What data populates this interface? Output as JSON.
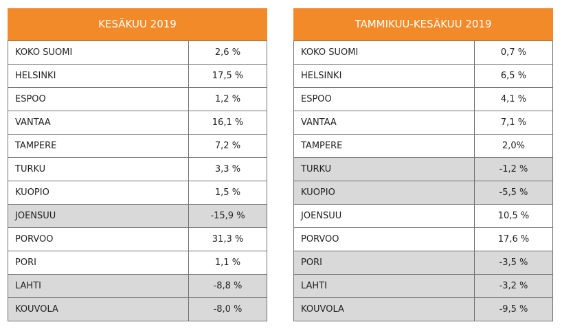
{
  "left": {
    "title": "KESÄKUU 2019",
    "rows": [
      {
        "city": "KOKO SUOMI",
        "value": "2,6 %",
        "shaded": false
      },
      {
        "city": "HELSINKI",
        "value": "17,5 %",
        "shaded": false
      },
      {
        "city": "ESPOO",
        "value": "1,2 %",
        "shaded": false
      },
      {
        "city": "VANTAA",
        "value": "16,1 %",
        "shaded": false
      },
      {
        "city": "TAMPERE",
        "value": "7,2 %",
        "shaded": false
      },
      {
        "city": "TURKU",
        "value": "3,3 %",
        "shaded": false
      },
      {
        "city": "KUOPIO",
        "value": "1,5 %",
        "shaded": false
      },
      {
        "city": "JOENSUU",
        "value": "-15,9 %",
        "shaded": true
      },
      {
        "city": "PORVOO",
        "value": "31,3 %",
        "shaded": false
      },
      {
        "city": "PORI",
        "value": "1,1 %",
        "shaded": false
      },
      {
        "city": "LAHTI",
        "value": "-8,8 %",
        "shaded": true
      },
      {
        "city": "KOUVOLA",
        "value": "-8,0 %",
        "shaded": true
      }
    ]
  },
  "right": {
    "title": "TAMMIKUU-KESÄKUU 2019",
    "rows": [
      {
        "city": "KOKO SUOMI",
        "value": "0,7 %",
        "shaded": false
      },
      {
        "city": "HELSINKI",
        "value": "6,5 %",
        "shaded": false
      },
      {
        "city": "ESPOO",
        "value": "4,1 %",
        "shaded": false
      },
      {
        "city": "VANTAA",
        "value": "7,1 %",
        "shaded": false
      },
      {
        "city": "TAMPERE",
        "value": "2,0%",
        "shaded": false
      },
      {
        "city": "TURKU",
        "value": "-1,2 %",
        "shaded": true
      },
      {
        "city": "KUOPIO",
        "value": "-5,5 %",
        "shaded": true
      },
      {
        "city": "JOENSUU",
        "value": "10,5 %",
        "shaded": false
      },
      {
        "city": "PORVOO",
        "value": "17,6 %",
        "shaded": false
      },
      {
        "city": "PORI",
        "value": "-3,5 %",
        "shaded": true
      },
      {
        "city": "LAHTI",
        "value": "-3,2 %",
        "shaded": true
      },
      {
        "city": "KOUVOLA",
        "value": "-9,5 %",
        "shaded": true
      }
    ]
  },
  "colors": {
    "header_bg": "#f28a2a",
    "header_text": "#ffffff",
    "shaded_row": "#d9d9d9",
    "border": "#6f6f6f"
  }
}
